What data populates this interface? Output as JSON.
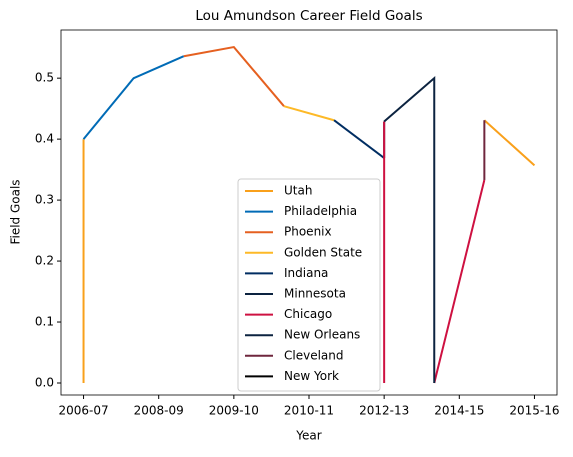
{
  "chart_data": {
    "type": "line",
    "title": "Lou Amundson Career Field Goals",
    "xlabel": "Year",
    "ylabel": "Field Goals",
    "xlim": [
      -0.45,
      9.45
    ],
    "ylim": [
      -0.0197,
      0.579
    ],
    "xticks": [
      {
        "value": 0,
        "label": "2006-07"
      },
      {
        "value": 1.5,
        "label": "2008-09"
      },
      {
        "value": 3,
        "label": "2009-10"
      },
      {
        "value": 4.5,
        "label": "2010-11"
      },
      {
        "value": 6,
        "label": "2012-13"
      },
      {
        "value": 7.5,
        "label": "2014-15"
      },
      {
        "value": 9,
        "label": "2015-16"
      }
    ],
    "yticks": [
      {
        "value": 0,
        "label": "0.0"
      },
      {
        "value": 0.1,
        "label": "0.1"
      },
      {
        "value": 0.2,
        "label": "0.2"
      },
      {
        "value": 0.3,
        "label": "0.3"
      },
      {
        "value": 0.4,
        "label": "0.4"
      },
      {
        "value": 0.5,
        "label": "0.5"
      }
    ],
    "legend": "lower center",
    "series": [
      {
        "name": "Utah",
        "color": "#F9A01B",
        "x": [
          0,
          0,
          null,
          8,
          9
        ],
        "values": [
          0,
          0.4,
          null,
          0.431,
          0.357
        ]
      },
      {
        "name": "Philadelphia",
        "color": "#006BB6",
        "x": [
          0,
          1,
          2
        ],
        "values": [
          0.4,
          0.5,
          0.536
        ]
      },
      {
        "name": "Phoenix",
        "color": "#E56020",
        "x": [
          2,
          3,
          4
        ],
        "values": [
          0.536,
          0.551,
          0.454
        ]
      },
      {
        "name": "Golden State",
        "color": "#FDB927",
        "x": [
          4,
          5
        ],
        "values": [
          0.454,
          0.431
        ]
      },
      {
        "name": "Indiana",
        "color": "#002D62",
        "x": [
          5,
          6
        ],
        "values": [
          0.431,
          0.369
        ]
      },
      {
        "name": "Minnesota",
        "color": "#0C2340",
        "x": [
          6,
          6
        ],
        "values": [
          0.369,
          0.429
        ]
      },
      {
        "name": "Chicago",
        "color": "#CE1141",
        "x": [
          6,
          6,
          null,
          7,
          8
        ],
        "values": [
          0,
          0.429,
          null,
          0,
          0.333
        ]
      },
      {
        "name": "New Orleans",
        "color": "#0C2340",
        "x": [
          6,
          7,
          7
        ],
        "values": [
          0.429,
          0.5,
          0
        ]
      },
      {
        "name": "Cleveland",
        "color": "#6F263D",
        "x": [
          8,
          8
        ],
        "values": [
          0.333,
          0.431
        ]
      },
      {
        "name": "New York",
        "color": "#000000",
        "x": [
          8
        ],
        "values": [
          0.431
        ]
      }
    ]
  }
}
